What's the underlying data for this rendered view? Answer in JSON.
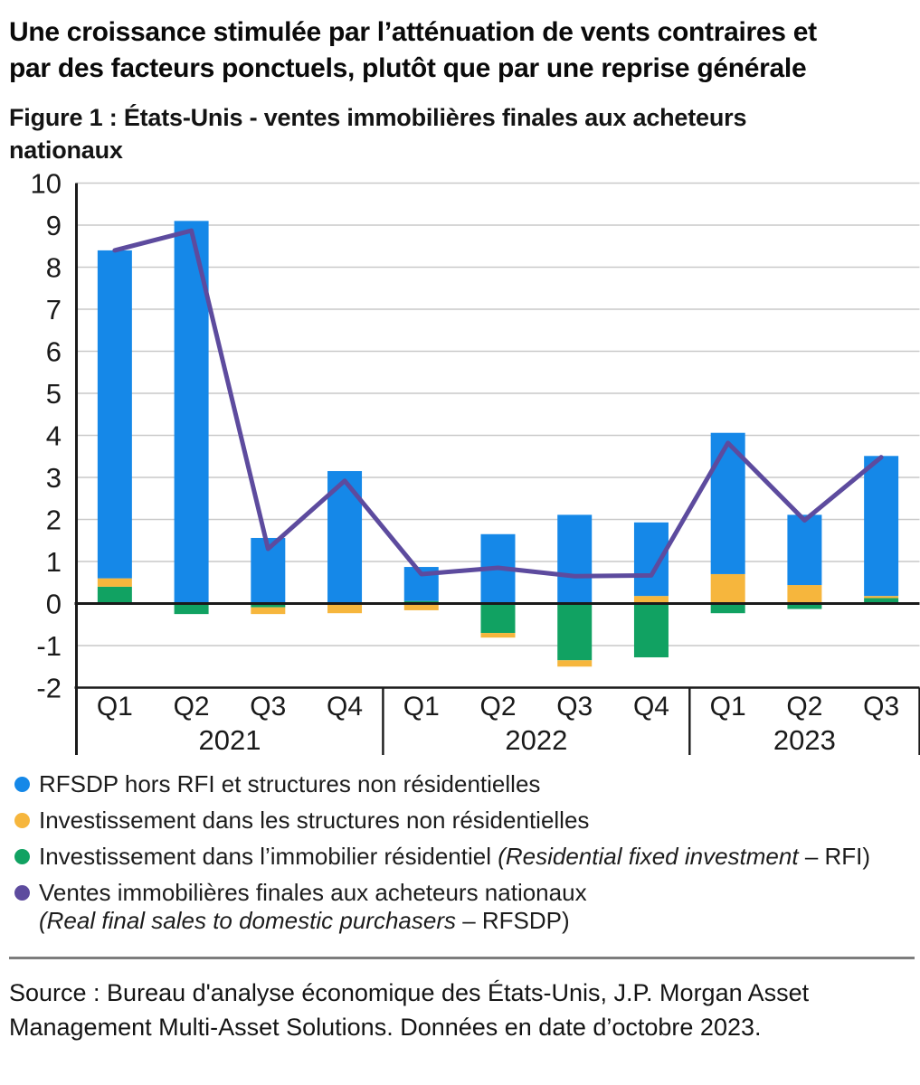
{
  "header": {
    "title_lines": [
      "Une croissance stimulée par l’atténuation de vents contraires et",
      "par des facteurs ponctuels, plutôt que par une reprise générale"
    ],
    "caption_lines": [
      "Figure 1 : États-Unis - ventes immobilières finales aux acheteurs",
      "nationaux"
    ]
  },
  "chart_data": {
    "type": "bar",
    "subtype": "stacked-bars-with-line",
    "categories": [
      "Q1",
      "Q2",
      "Q3",
      "Q4",
      "Q1",
      "Q2",
      "Q3",
      "Q4",
      "Q1",
      "Q2",
      "Q3"
    ],
    "year_groups": [
      {
        "label": "2021",
        "count": 4
      },
      {
        "label": "2022",
        "count": 4
      },
      {
        "label": "2023",
        "count": 3
      }
    ],
    "series": [
      {
        "name": "RFSDP hors RFI et structures non résidentielles",
        "type": "bar",
        "color": "#1588E8",
        "values": [
          7.8,
          9.1,
          1.56,
          3.15,
          0.81,
          1.65,
          2.11,
          1.75,
          3.36,
          1.67,
          3.33
        ]
      },
      {
        "name": "Investissement dans les structures non résidentielles",
        "type": "bar",
        "color": "#F6B63D",
        "values": [
          0.2,
          0,
          -0.16,
          -0.23,
          -0.16,
          -0.11,
          -0.15,
          0.18,
          0.7,
          0.44,
          0.05
        ]
      },
      {
        "name": "Investissement dans l’immobilier résidentiel (Residential fixed investment – RFI)",
        "type": "bar",
        "color": "#11A262",
        "values": [
          0.4,
          -0.25,
          -0.09,
          0,
          0.06,
          -0.7,
          -1.35,
          -1.28,
          -0.23,
          -0.13,
          0.13
        ]
      },
      {
        "name": "Ventes immobilières finales aux acheteurs nationaux (Real final sales to domestic purchasers – RFSDP)",
        "type": "line",
        "color": "#5D4B9E",
        "values": [
          8.4,
          8.87,
          1.3,
          2.92,
          0.7,
          0.85,
          0.65,
          0.67,
          3.82,
          1.98,
          3.48
        ]
      }
    ],
    "ylim": [
      -2,
      10
    ],
    "yticks": [
      10,
      9,
      8,
      7,
      6,
      5,
      4,
      3,
      2,
      1,
      0,
      -1,
      -2
    ],
    "grid": true,
    "grid_color": "#C9C9C9",
    "axis_color": "#1A1A1A",
    "legend_position": "bottom"
  },
  "legend": {
    "items": [
      {
        "color": "#1588E8",
        "lines": [
          [
            {
              "t": "RFSDP hors RFI et structures non résidentielles",
              "i": false
            }
          ]
        ]
      },
      {
        "color": "#F6B63D",
        "lines": [
          [
            {
              "t": "Investissement dans les structures non résidentielles",
              "i": false
            }
          ]
        ]
      },
      {
        "color": "#11A262",
        "lines": [
          [
            {
              "t": "Investissement dans l’immobilier résidentiel ",
              "i": false
            },
            {
              "t": "(Residential fixed investment",
              "i": true
            },
            {
              "t": " – RFI)",
              "i": false
            }
          ]
        ]
      },
      {
        "color": "#5D4B9E",
        "lines": [
          [
            {
              "t": "Ventes immobilières finales aux acheteurs nationaux",
              "i": false
            }
          ],
          [
            {
              "t": "(Real final sales to domestic purchasers",
              "i": true
            },
            {
              "t": " – RFSDP)",
              "i": false
            }
          ]
        ]
      }
    ]
  },
  "source": {
    "lines": [
      "Source : Bureau d'analyse économique des États-Unis, J.P. Morgan Asset",
      "Management Multi-Asset Solutions. Données en date d’octobre 2023."
    ]
  }
}
